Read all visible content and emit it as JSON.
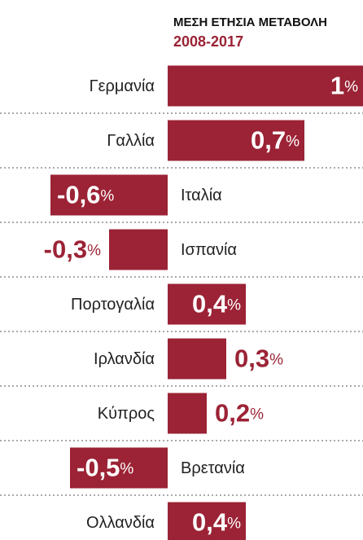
{
  "chart_data": {
    "type": "bar",
    "orientation": "horizontal",
    "title": "ΜΕΣΗ ΕΤΗΣΙΑ ΜΕΤΑΒΟΛΗ",
    "subtitle": "2008-2017",
    "categories": [
      "Γερμανία",
      "Γαλλία",
      "Ιταλία",
      "Ισπανία",
      "Πορτογαλία",
      "Ιρλανδία",
      "Κύπρος",
      "Βρετανία",
      "Ολλανδία"
    ],
    "values": [
      1,
      0.7,
      -0.6,
      -0.3,
      0.4,
      0.3,
      0.2,
      -0.5,
      0.4
    ],
    "value_labels": [
      "1%",
      "0,7%",
      "-0,6%",
      "-0,3%",
      "0,4%",
      "0,3%",
      "0,2%",
      "-0,5%",
      "0,4%"
    ],
    "color": "#9b2335"
  }
}
